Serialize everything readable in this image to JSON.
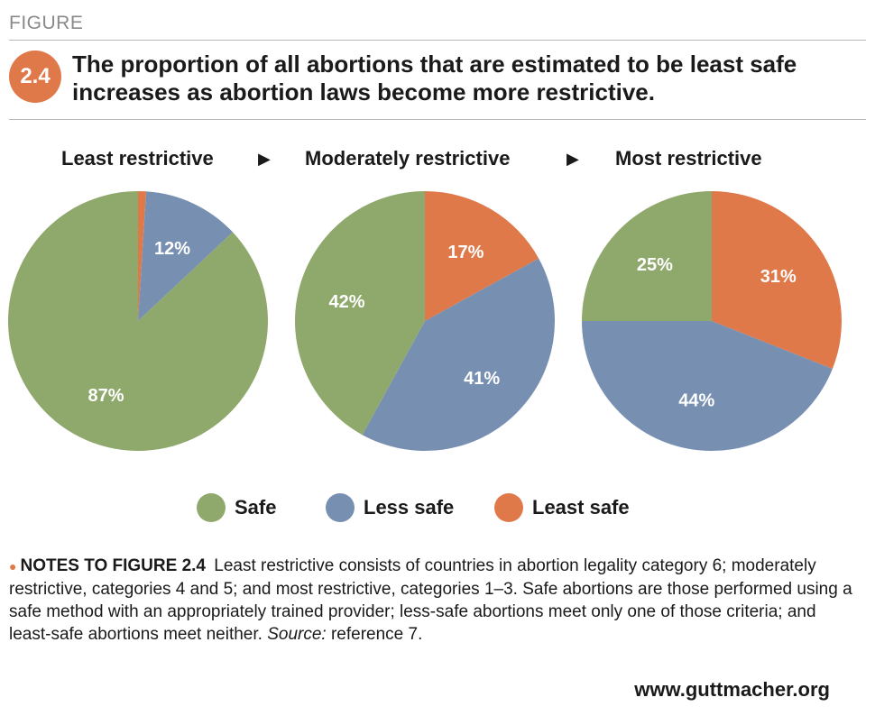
{
  "header": {
    "figure_label": "FIGURE",
    "number": "2.4",
    "title": "The proportion of all abortions that are estimated to be least safe increases as abortion laws become more restrictive."
  },
  "arrows": [
    "▶",
    "▶"
  ],
  "colors": {
    "safe": "#8fa96c",
    "less_safe": "#7790b2",
    "least_safe": "#e0794a"
  },
  "chart_data": [
    {
      "type": "pie",
      "title": "Least restrictive",
      "categories": [
        "Least safe",
        "Less safe",
        "Safe"
      ],
      "values": [
        1,
        12,
        87
      ],
      "labels": [
        "",
        "12%",
        "87%"
      ]
    },
    {
      "type": "pie",
      "title": "Moderately restrictive",
      "categories": [
        "Least safe",
        "Less safe",
        "Safe"
      ],
      "values": [
        17,
        41,
        42
      ],
      "labels": [
        "17%",
        "41%",
        "42%"
      ]
    },
    {
      "type": "pie",
      "title": "Most restrictive",
      "categories": [
        "Least safe",
        "Less safe",
        "Safe"
      ],
      "values": [
        31,
        44,
        25
      ],
      "labels": [
        "31%",
        "44%",
        "25%"
      ]
    }
  ],
  "legend": [
    {
      "label": "Safe",
      "key": "safe"
    },
    {
      "label": "Less safe",
      "key": "less_safe"
    },
    {
      "label": "Least safe",
      "key": "least_safe"
    }
  ],
  "notes": {
    "heading": "NOTES TO FIGURE 2.4",
    "text": "Least restrictive consists of countries in abortion legality category 6; moderately restrictive, categories 4 and 5; and most restrictive, categories 1–3. Safe abortions are those performed using a safe method with an appropriately trained provider; less-safe abortions meet only one of those criteria; and least-safe abortions meet neither.",
    "source_label": "Source:",
    "source_text": "reference 7."
  },
  "footer": {
    "url": "www.guttmacher.org"
  }
}
